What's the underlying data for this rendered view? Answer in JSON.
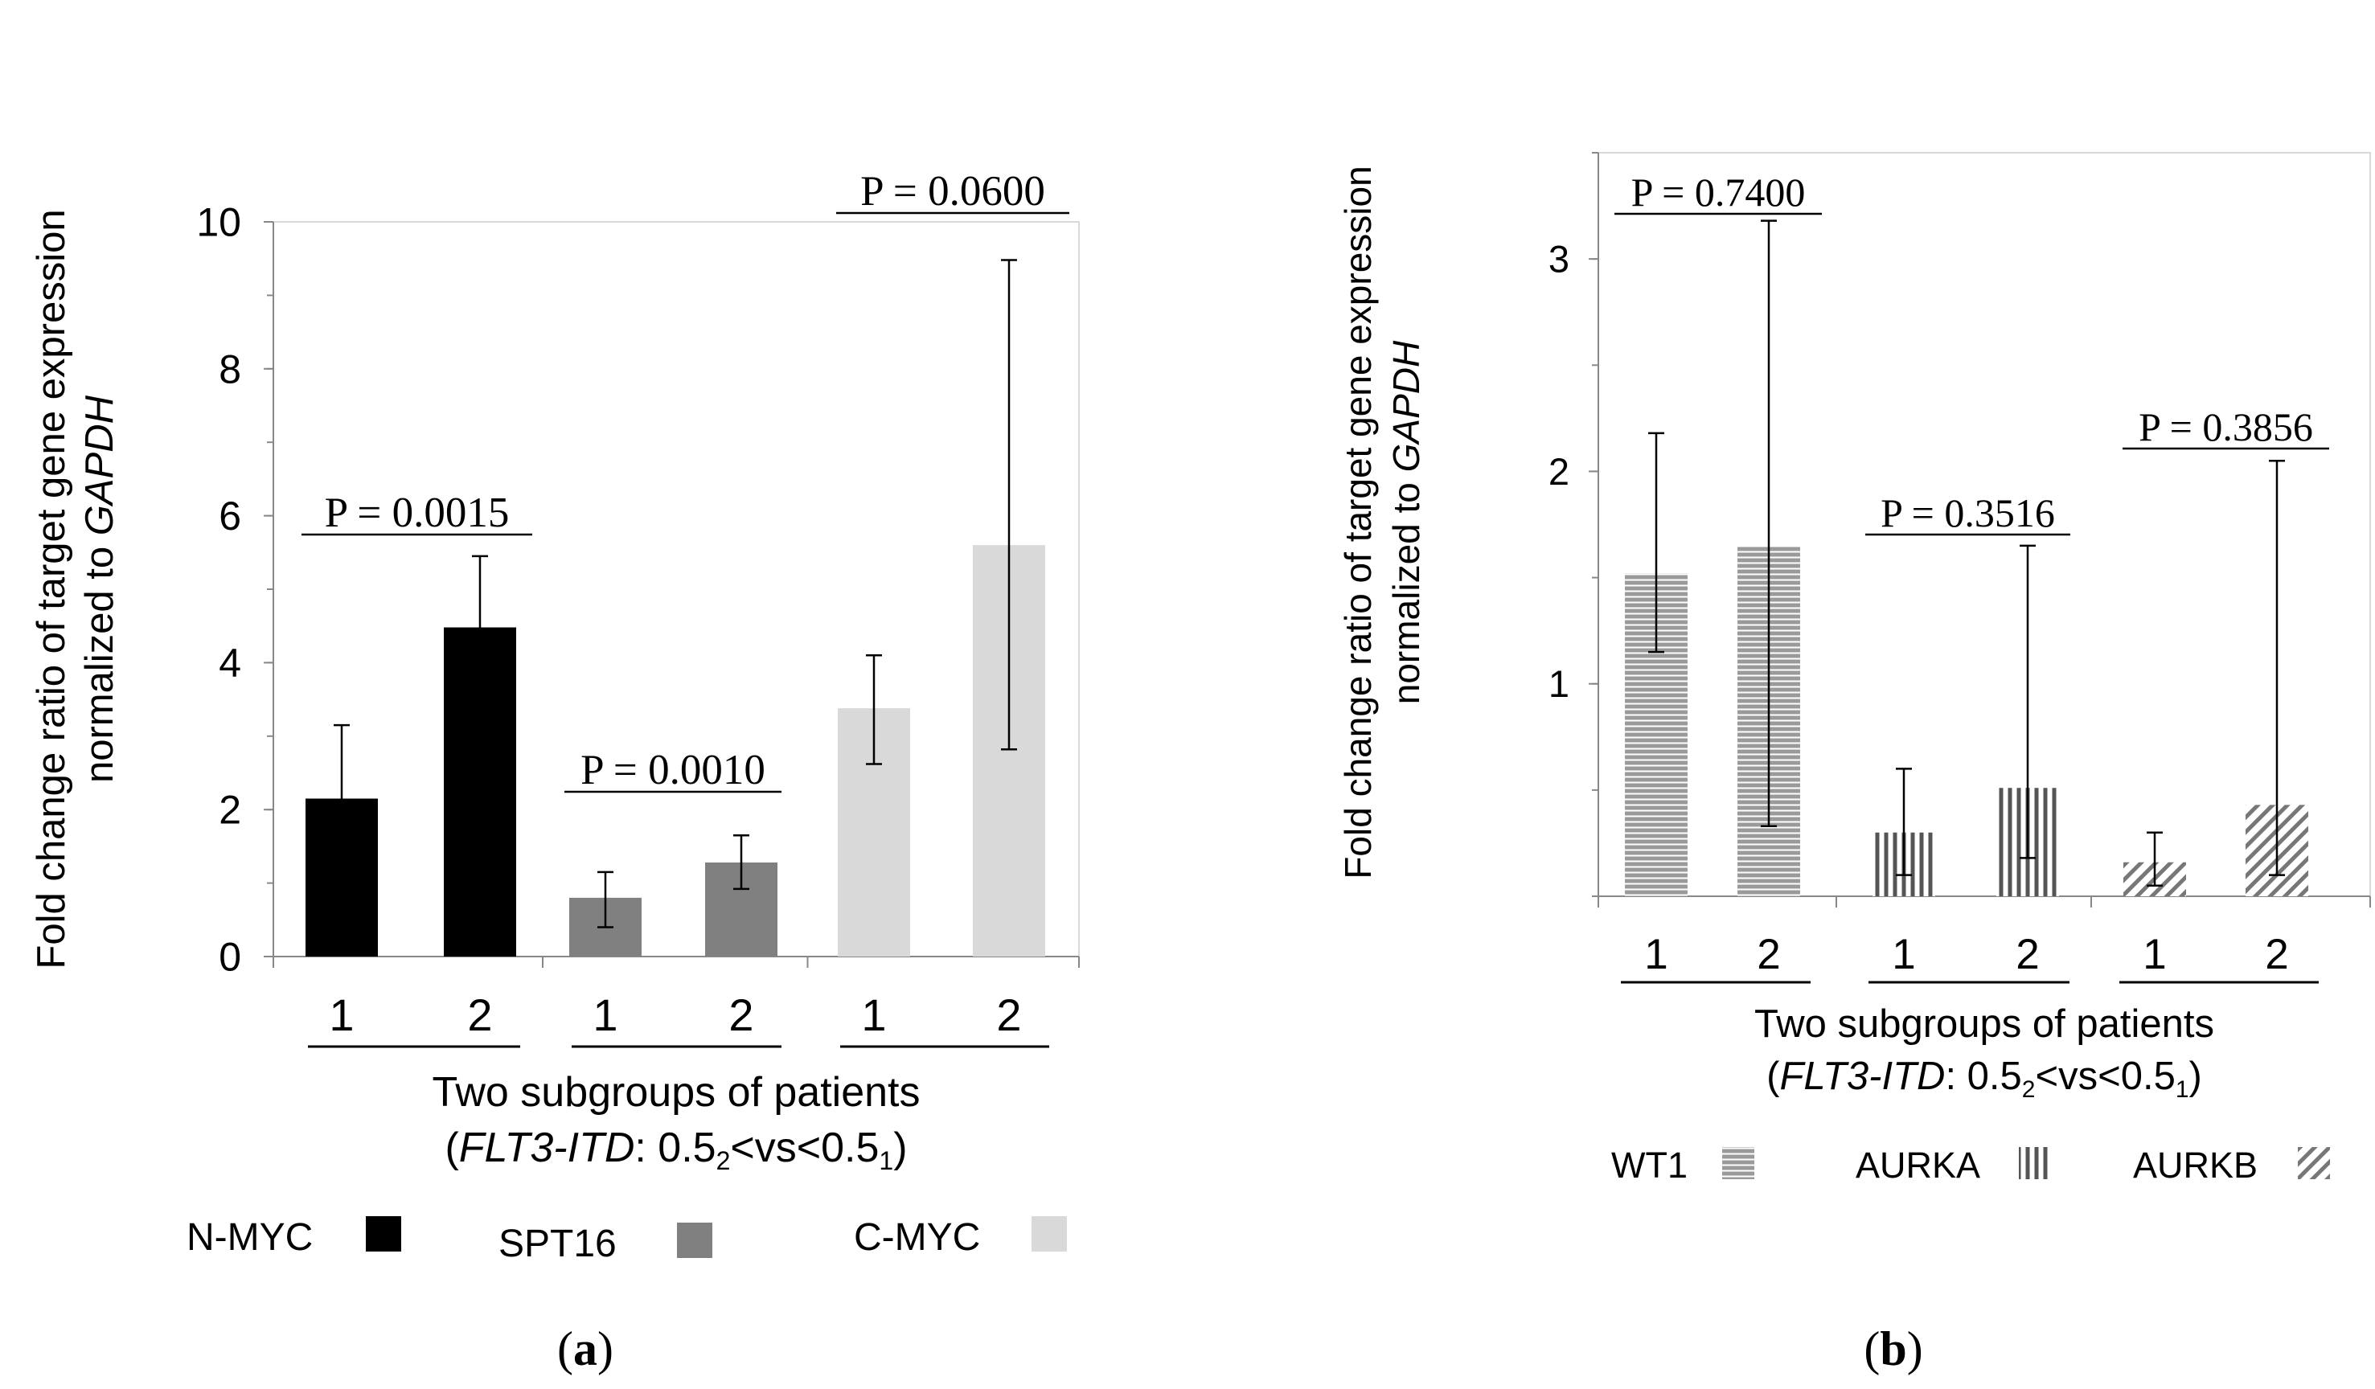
{
  "chart_data": [
    {
      "type": "bar",
      "panel_label": "(a)",
      "panel_letter": "a",
      "ylabel_line1": "Fold change ratio of target gene expression",
      "ylabel_line2_prefix": "normalized to ",
      "ylabel_line2_gene": "GAPDH",
      "ylim": [
        0,
        10
      ],
      "yticks": [
        "0",
        "2",
        "4",
        "6",
        "8",
        "10"
      ],
      "xlabel_line1": "Two subgroups of patients",
      "xlabel_line2_gene": "FLT3-ITD",
      "xlabel_line2_rest": ": 0.5",
      "xlabel_sub1": "2",
      "xlabel_mid": "<vs<0.5",
      "xlabel_sub2": "1",
      "xlabel_close": ")",
      "groups": [
        {
          "name": "N-MYC",
          "color": "#000000",
          "pattern": "solid",
          "categories": [
            "1",
            "2"
          ],
          "values": [
            2.15,
            4.48
          ],
          "err_low": [
            1.02,
            3.45
          ],
          "err_high": [
            3.15,
            5.45
          ],
          "p_label": "P = 0.0015"
        },
        {
          "name": "SPT16",
          "color": "#808080",
          "pattern": "solid",
          "categories": [
            "1",
            "2"
          ],
          "values": [
            0.8,
            1.28
          ],
          "err_low": [
            0.4,
            0.92
          ],
          "err_high": [
            1.15,
            1.65
          ],
          "p_label": "P = 0.0010"
        },
        {
          "name": "C-MYC",
          "color": "#d9d9d9",
          "pattern": "solid",
          "categories": [
            "1",
            "2"
          ],
          "values": [
            3.38,
            5.6
          ],
          "err_low": [
            2.62,
            2.82
          ],
          "err_high": [
            4.1,
            9.48
          ],
          "p_label": "P = 0.0600"
        }
      ],
      "legend": [
        {
          "label": "N-MYC",
          "color": "#000000",
          "pattern": "solid"
        },
        {
          "label": "SPT16",
          "color": "#808080",
          "pattern": "solid"
        },
        {
          "label": "C-MYC",
          "color": "#d9d9d9",
          "pattern": "solid"
        }
      ]
    },
    {
      "type": "bar",
      "panel_label": "(b)",
      "panel_letter": "b",
      "ylabel_line1": "Fold change ratio of target gene expression",
      "ylabel_line2_prefix": "normalized to ",
      "ylabel_line2_gene": "GAPDH",
      "ylim": [
        0,
        3.5
      ],
      "yticks": [
        "1",
        "2",
        "3"
      ],
      "xlabel_line1": "Two subgroups of patients",
      "xlabel_line2_gene": "FLT3-ITD",
      "xlabel_line2_rest": ": 0.5",
      "xlabel_sub1": "2",
      "xlabel_mid": "<vs<0.5",
      "xlabel_sub2": "1",
      "xlabel_close": ")",
      "groups": [
        {
          "name": "WT1",
          "color": "#9a9a9a",
          "pattern": "horizontal",
          "categories": [
            "1",
            "2"
          ],
          "values": [
            1.52,
            1.65
          ],
          "err_low": [
            1.15,
            0.33
          ],
          "err_high": [
            2.18,
            3.18
          ],
          "p_label": "P = 0.7400"
        },
        {
          "name": "AURKA",
          "color": "#555555",
          "pattern": "vertical",
          "categories": [
            "1",
            "2"
          ],
          "values": [
            0.3,
            0.51
          ],
          "err_low": [
            0.1,
            0.18
          ],
          "err_high": [
            0.6,
            1.65
          ],
          "p_label": "P = 0.3516"
        },
        {
          "name": "AURKB",
          "color": "#777777",
          "pattern": "diagonal",
          "categories": [
            "1",
            "2"
          ],
          "values": [
            0.16,
            0.43
          ],
          "err_low": [
            0.05,
            0.1
          ],
          "err_high": [
            0.3,
            2.05
          ],
          "p_label": "P = 0.3856"
        }
      ],
      "legend": [
        {
          "label": "WT1",
          "color": "#9a9a9a",
          "pattern": "horizontal"
        },
        {
          "label": "AURKA",
          "color": "#555555",
          "pattern": "vertical"
        },
        {
          "label": "AURKB",
          "color": "#777777",
          "pattern": "diagonal"
        }
      ]
    }
  ]
}
